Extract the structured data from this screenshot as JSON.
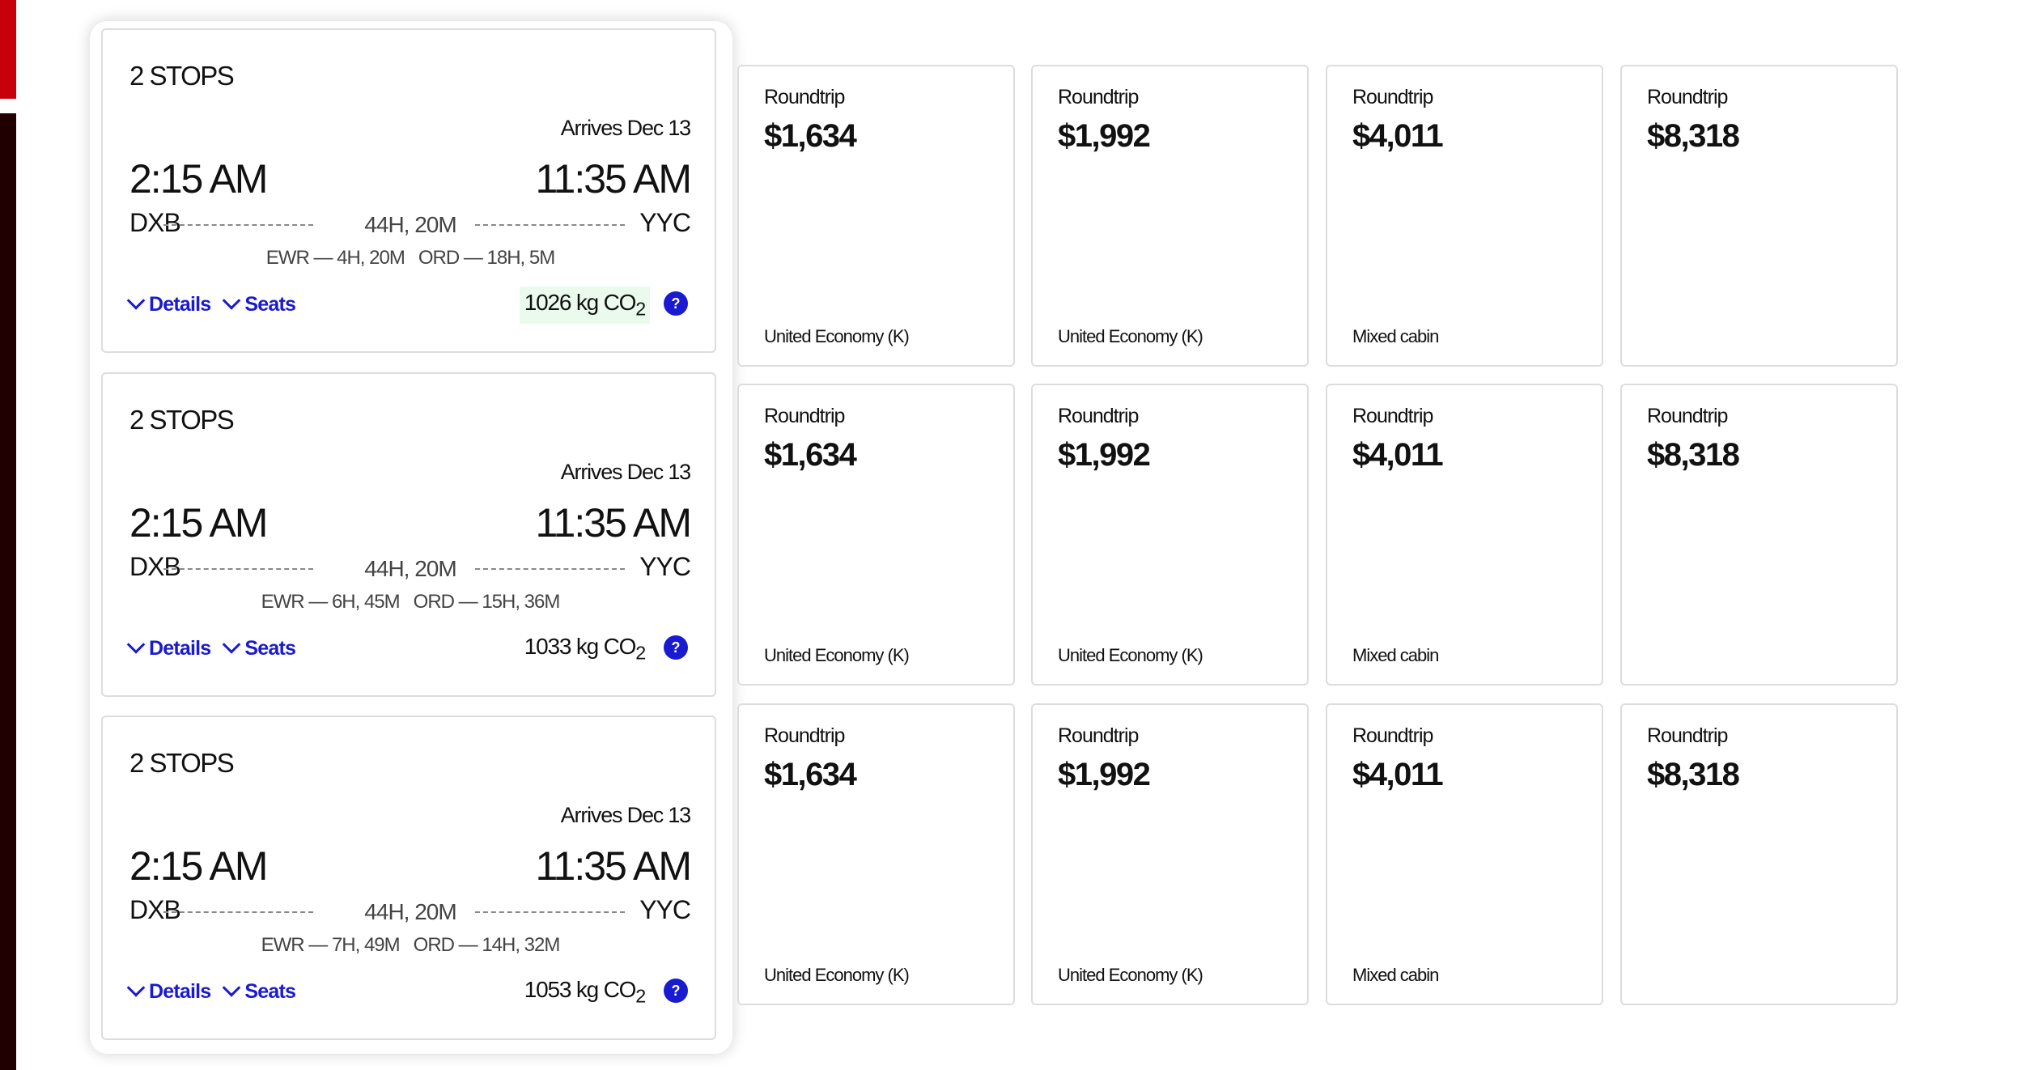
{
  "flights": [
    {
      "stops": "2 STOPS",
      "arrives": "Arrives Dec 13",
      "depart_time": "2:15 AM",
      "arrive_time": "11:35 AM",
      "origin": "DXB",
      "destination": "YYC",
      "duration": "44H, 20M",
      "layovers": "EWR — 4H, 20M   ORD — 18H, 5M",
      "details_label": "Details",
      "seats_label": "Seats",
      "co2": "1026 kg CO",
      "co2_sub": "2",
      "help": "?",
      "fares": [
        {
          "label": "Roundtrip",
          "price": "$1,634",
          "cabin": "United Economy (K)"
        },
        {
          "label": "Roundtrip",
          "price": "$1,992",
          "cabin": "United Economy (K)"
        },
        {
          "label": "Roundtrip",
          "price": "$4,011",
          "cabin": "Mixed cabin"
        },
        {
          "label": "Roundtrip",
          "price": "$8,318",
          "cabin": ""
        }
      ]
    },
    {
      "stops": "2 STOPS",
      "arrives": "Arrives Dec 13",
      "depart_time": "2:15 AM",
      "arrive_time": "11:35 AM",
      "origin": "DXB",
      "destination": "YYC",
      "duration": "44H, 20M",
      "layovers": "EWR — 6H, 45M   ORD — 15H, 36M",
      "details_label": "Details",
      "seats_label": "Seats",
      "co2": "1033 kg CO",
      "co2_sub": "2",
      "help": "?",
      "fares": [
        {
          "label": "Roundtrip",
          "price": "$1,634",
          "cabin": "United Economy (K)"
        },
        {
          "label": "Roundtrip",
          "price": "$1,992",
          "cabin": "United Economy (K)"
        },
        {
          "label": "Roundtrip",
          "price": "$4,011",
          "cabin": "Mixed cabin"
        },
        {
          "label": "Roundtrip",
          "price": "$8,318",
          "cabin": ""
        }
      ]
    },
    {
      "stops": "2 STOPS",
      "arrives": "Arrives Dec 13",
      "depart_time": "2:15 AM",
      "arrive_time": "11:35 AM",
      "origin": "DXB",
      "destination": "YYC",
      "duration": "44H, 20M",
      "layovers": "EWR — 7H, 49M   ORD — 14H, 32M",
      "details_label": "Details",
      "seats_label": "Seats",
      "co2": "1053 kg CO",
      "co2_sub": "2",
      "help": "?",
      "fares": [
        {
          "label": "Roundtrip",
          "price": "$1,634",
          "cabin": "United Economy (K)"
        },
        {
          "label": "Roundtrip",
          "price": "$1,992",
          "cabin": "United Economy (K)"
        },
        {
          "label": "Roundtrip",
          "price": "$4,011",
          "cabin": "Mixed cabin"
        },
        {
          "label": "Roundtrip",
          "price": "$8,318",
          "cabin": ""
        }
      ]
    }
  ],
  "colors": {
    "brand_red": "#c8000c",
    "link_blue": "#1a1ad0",
    "co2_highlight": "#eafbee"
  }
}
